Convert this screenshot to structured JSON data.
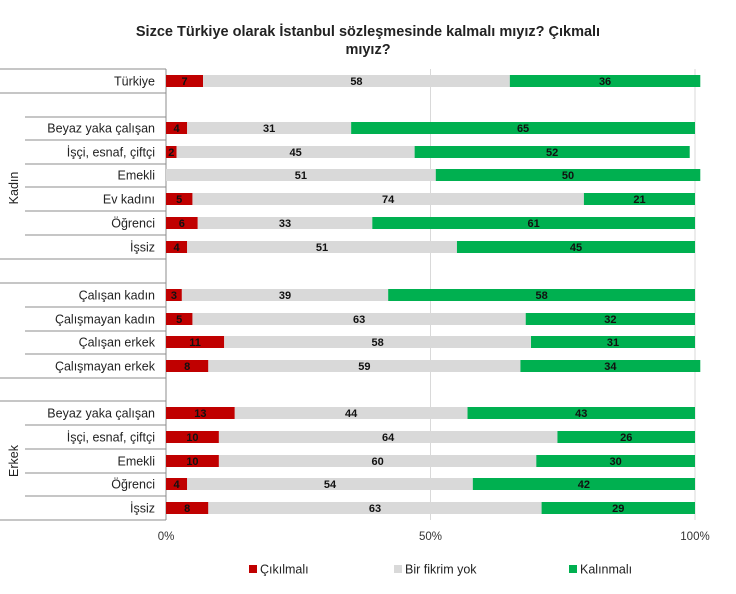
{
  "chart_data": {
    "type": "bar",
    "stacked": true,
    "orientation": "horizontal",
    "title_line1": "Sizce Türkiye olarak İstanbul sözleşmesinde kalmalı mıyız? Çıkmalı",
    "title_line2": "mıyız?",
    "xlim": [
      0,
      100
    ],
    "x_ticks": [
      "0%",
      "50%",
      "100%"
    ],
    "legend_position": "bottom",
    "groups": [
      "Kadın",
      "Erkek"
    ],
    "categories": [
      "Türkiye",
      "Beyaz yaka çalışan",
      "İşçi, esnaf, çiftçi",
      "Emekli",
      "Ev kadını",
      "Öğrenci",
      "İşsiz",
      "Çalışan kadın",
      "Çalışmayan kadın",
      "Çalışan erkek",
      "Çalışmayan erkek",
      "Beyaz yaka çalışan",
      "İşçi, esnaf, çiftçi",
      "Emekli",
      "Öğrenci",
      "İşsiz"
    ],
    "series": [
      {
        "name": "Çıkılmalı",
        "color": "#c00000",
        "values": [
          7,
          4,
          2,
          0,
          5,
          6,
          4,
          3,
          5,
          11,
          8,
          13,
          10,
          10,
          4,
          8
        ]
      },
      {
        "name": "Bir fikrim yok",
        "color": "#d9d9d9",
        "values": [
          58,
          31,
          45,
          51,
          74,
          33,
          51,
          39,
          63,
          58,
          59,
          44,
          64,
          60,
          54,
          63
        ]
      },
      {
        "name": "Kalınmalı",
        "color": "#00b050",
        "values": [
          36,
          65,
          52,
          50,
          21,
          61,
          45,
          58,
          32,
          31,
          34,
          43,
          26,
          30,
          42,
          29
        ]
      }
    ]
  }
}
